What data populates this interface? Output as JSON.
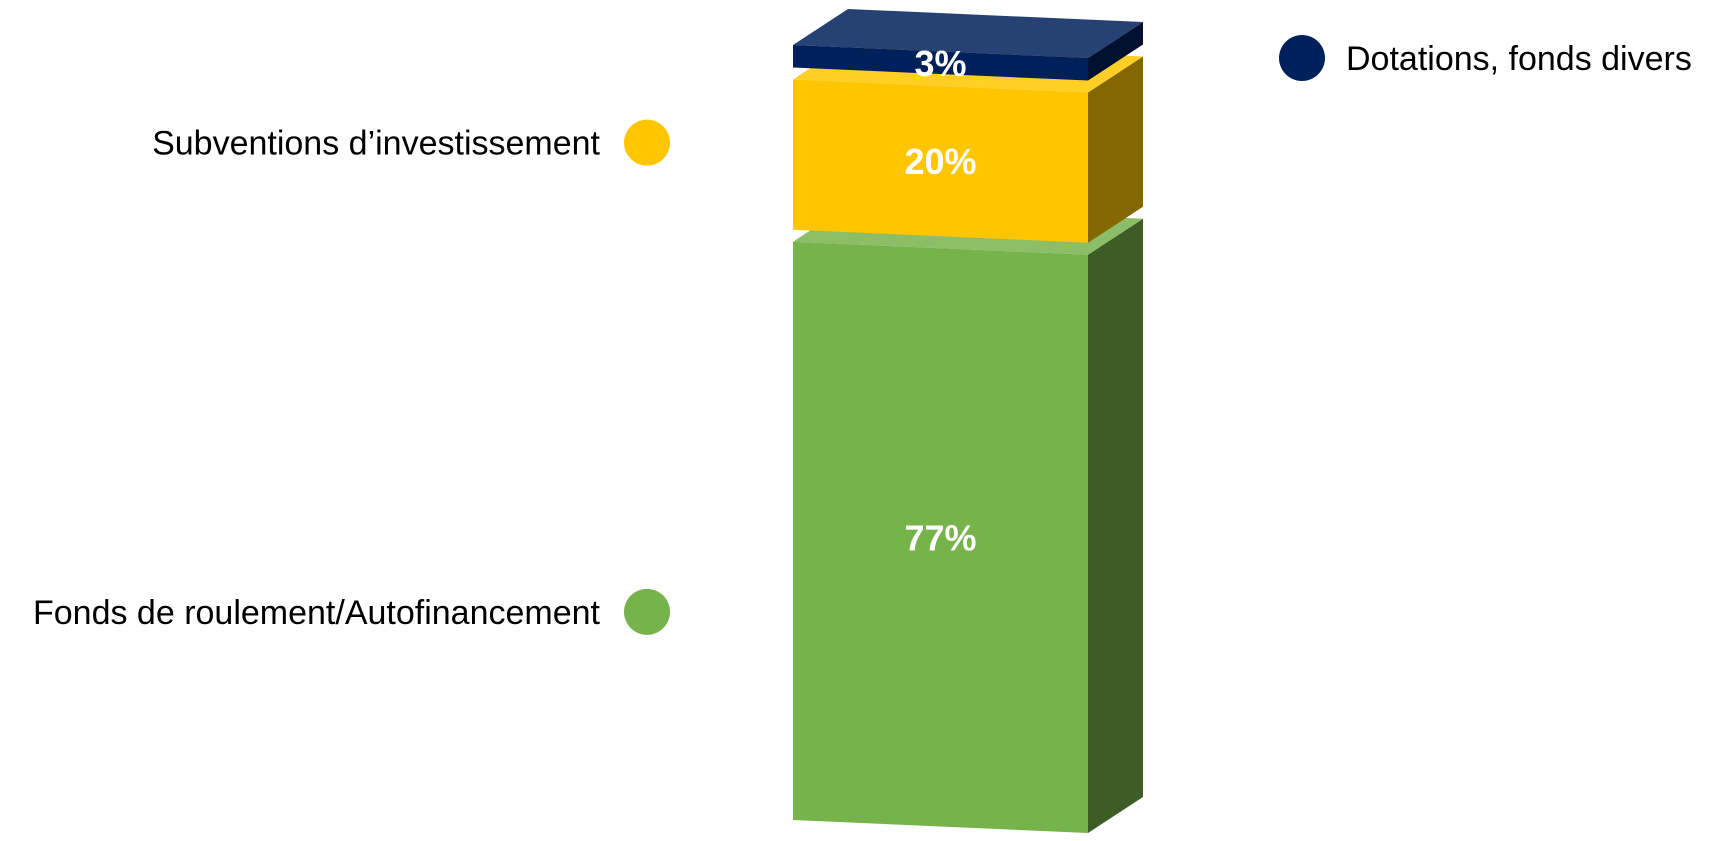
{
  "chart_data": {
    "type": "bar",
    "stacked": true,
    "three_d": true,
    "categories": [
      ""
    ],
    "series": [
      {
        "name": "Fonds de roulement/Autofinancement",
        "values": [
          77
        ],
        "label": "77%",
        "color": "#76b34b",
        "legend_position": "left"
      },
      {
        "name": "Subventions d’investissement",
        "values": [
          20
        ],
        "label": "20%",
        "color": "#ffc600",
        "legend_position": "left"
      },
      {
        "name": "Dotations, fonds divers",
        "values": [
          3
        ],
        "label": "3%",
        "color": "#00205b",
        "legend_position": "right"
      }
    ],
    "unit": "%",
    "ylim": [
      0,
      100
    ],
    "grid": false,
    "title": "",
    "xlabel": "",
    "ylabel": ""
  }
}
